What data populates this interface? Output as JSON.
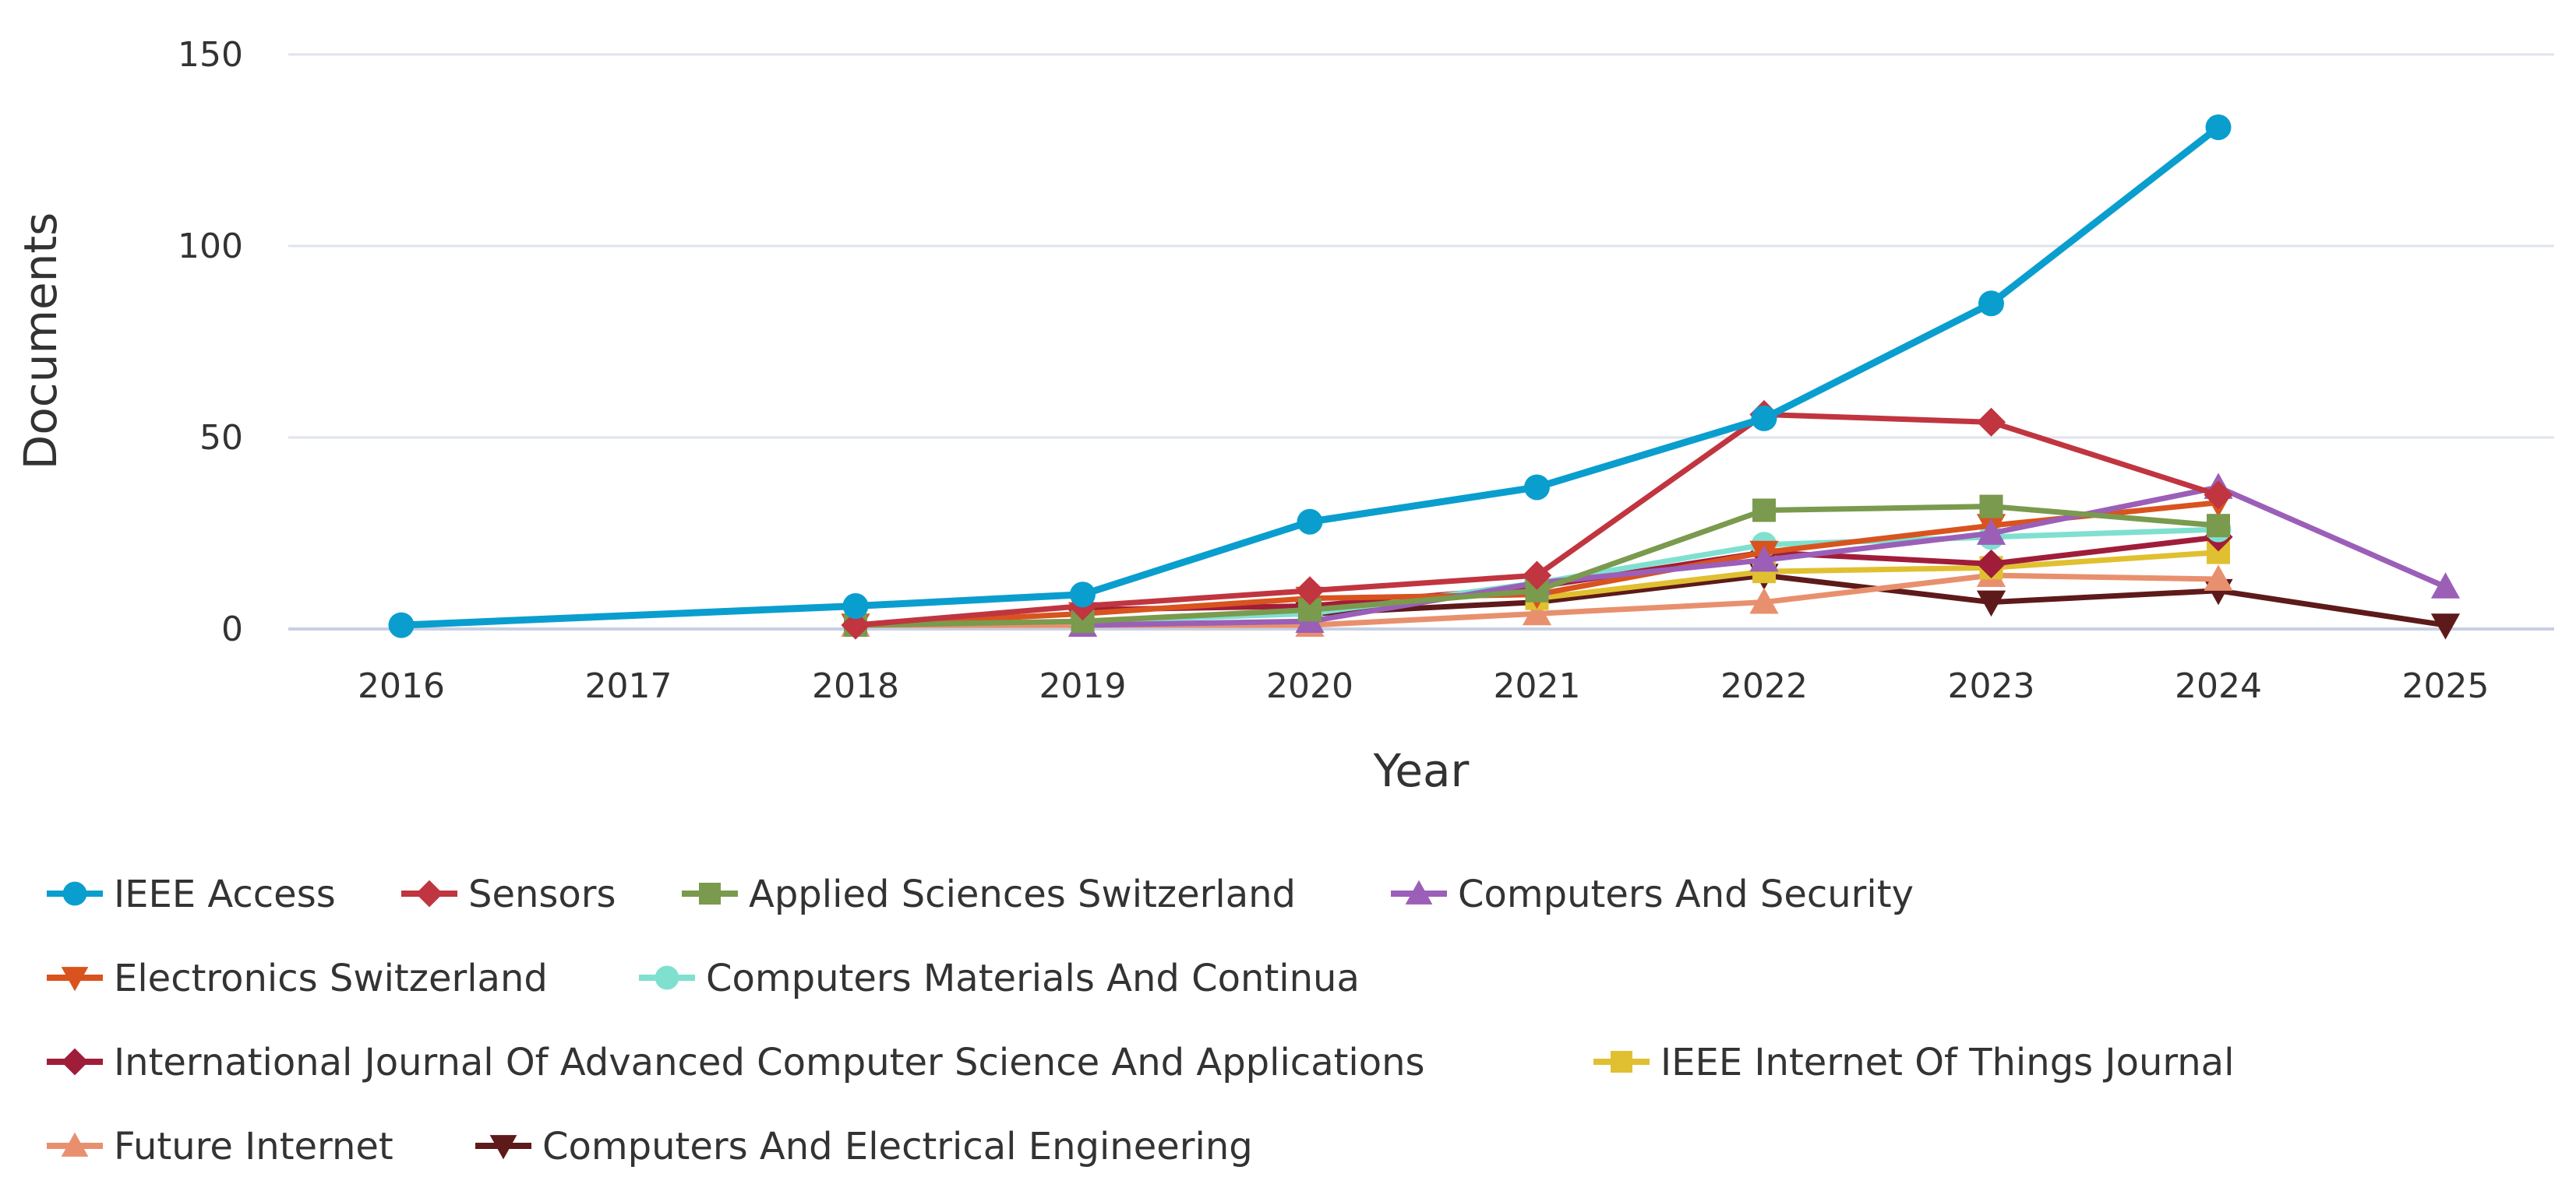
{
  "chart_data": {
    "type": "line",
    "title": "",
    "xlabel": "Year",
    "ylabel": "Documents",
    "x": [
      2016,
      2017,
      2018,
      2019,
      2020,
      2021,
      2022,
      2023,
      2024,
      2025
    ],
    "x_tick_labels": [
      "2016",
      "2017",
      "2018",
      "2019",
      "2020",
      "2021",
      "2022",
      "2023",
      "2024",
      "2025"
    ],
    "ylim": [
      0,
      150
    ],
    "y_ticks": [
      0,
      50,
      100,
      150
    ],
    "y_tick_labels": [
      "0",
      "50",
      "100",
      "150"
    ],
    "grid": true,
    "legend_position": "bottom",
    "series": [
      {
        "name": "IEEE Access",
        "color": "#0a9ecf",
        "marker": "circle",
        "points": [
          [
            2016,
            1
          ],
          [
            2018,
            6
          ],
          [
            2019,
            9
          ],
          [
            2020,
            28
          ],
          [
            2021,
            37
          ],
          [
            2022,
            55
          ],
          [
            2023,
            85
          ],
          [
            2024,
            131
          ]
        ]
      },
      {
        "name": "Sensors",
        "color": "#c0353f",
        "marker": "diamond",
        "points": [
          [
            2018,
            1
          ],
          [
            2019,
            6
          ],
          [
            2020,
            10
          ],
          [
            2021,
            14
          ],
          [
            2022,
            56
          ],
          [
            2023,
            54
          ],
          [
            2024,
            35
          ]
        ]
      },
      {
        "name": "Applied Sciences Switzerland",
        "color": "#7a9a4e",
        "marker": "square",
        "points": [
          [
            2018,
            1
          ],
          [
            2019,
            2
          ],
          [
            2020,
            5
          ],
          [
            2021,
            10
          ],
          [
            2022,
            31
          ],
          [
            2023,
            32
          ],
          [
            2024,
            27
          ]
        ]
      },
      {
        "name": "Computers And Security",
        "color": "#9b5fb8",
        "marker": "triangle-up",
        "points": [
          [
            2019,
            1
          ],
          [
            2020,
            2
          ],
          [
            2021,
            12
          ],
          [
            2022,
            18
          ],
          [
            2023,
            25
          ],
          [
            2024,
            37
          ],
          [
            2025,
            11
          ]
        ]
      },
      {
        "name": "Electronics Switzerland",
        "color": "#d9531e",
        "marker": "triangle-down",
        "points": [
          [
            2018,
            1
          ],
          [
            2019,
            4
          ],
          [
            2020,
            8
          ],
          [
            2021,
            9
          ],
          [
            2022,
            20
          ],
          [
            2023,
            27
          ],
          [
            2024,
            33
          ]
        ]
      },
      {
        "name": "Computers Materials And Continua",
        "color": "#7fe0d0",
        "marker": "circle",
        "points": [
          [
            2019,
            2
          ],
          [
            2020,
            4
          ],
          [
            2021,
            12
          ],
          [
            2022,
            22
          ],
          [
            2023,
            24
          ],
          [
            2024,
            26
          ]
        ]
      },
      {
        "name": "International Journal Of Advanced Computer Science And Applications",
        "color": "#a01d3a",
        "marker": "diamond",
        "points": [
          [
            2019,
            5
          ],
          [
            2020,
            6
          ],
          [
            2021,
            11
          ],
          [
            2022,
            20
          ],
          [
            2023,
            17
          ],
          [
            2024,
            24
          ]
        ]
      },
      {
        "name": "IEEE Internet Of Things Journal",
        "color": "#e0c030",
        "marker": "square",
        "points": [
          [
            2021,
            8
          ],
          [
            2022,
            15
          ],
          [
            2023,
            16
          ],
          [
            2024,
            20
          ]
        ]
      },
      {
        "name": "Future Internet",
        "color": "#e8906e",
        "marker": "triangle-up",
        "points": [
          [
            2018,
            1
          ],
          [
            2019,
            1
          ],
          [
            2020,
            1
          ],
          [
            2021,
            4
          ],
          [
            2022,
            7
          ],
          [
            2023,
            14
          ],
          [
            2024,
            13
          ]
        ]
      },
      {
        "name": "Computers And Electrical Engineering",
        "color": "#5e1a1a",
        "marker": "triangle-down",
        "points": [
          [
            2020,
            4
          ],
          [
            2021,
            7
          ],
          [
            2022,
            14
          ],
          [
            2023,
            7
          ],
          [
            2024,
            10
          ],
          [
            2025,
            1
          ]
        ]
      }
    ]
  }
}
